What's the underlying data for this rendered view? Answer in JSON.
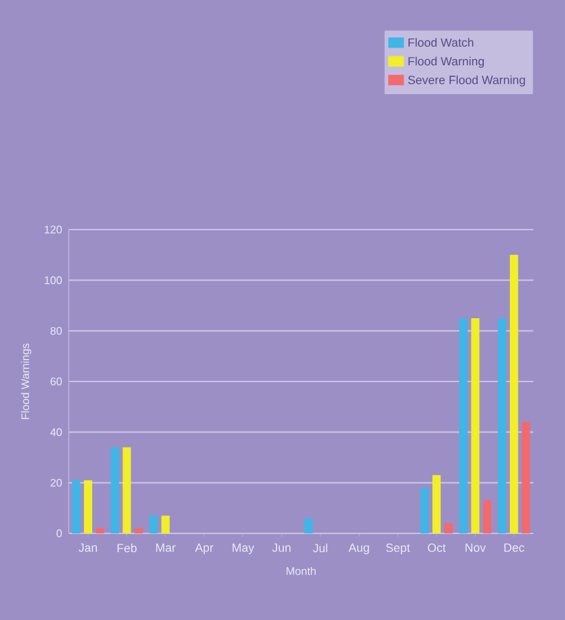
{
  "chart_data": {
    "type": "bar",
    "xlabel": "Month",
    "ylabel": "Flood Warnings",
    "categories": [
      "Jan",
      "Feb",
      "Mar",
      "Apr",
      "May",
      "Jun",
      "Jul",
      "Aug",
      "Sept",
      "Oct",
      "Nov",
      "Dec"
    ],
    "series": [
      {
        "name": "Flood Watch",
        "color": "#3fb6e6",
        "values": [
          21,
          34,
          7,
          0,
          0,
          0,
          6,
          0,
          0,
          18,
          85,
          85
        ]
      },
      {
        "name": "Flood Warning",
        "color": "#f2ee2a",
        "values": [
          21,
          34,
          7,
          0,
          0,
          0,
          0,
          0,
          0,
          23,
          85,
          110
        ]
      },
      {
        "name": "Severe Flood Warning",
        "color": "#f26a6e",
        "values": [
          2,
          2,
          0,
          0,
          0,
          0,
          0,
          0,
          0,
          4,
          13,
          44
        ]
      }
    ],
    "ylim": [
      0,
      120
    ],
    "yticks": [
      0,
      20,
      40,
      60,
      80,
      100,
      120
    ],
    "grid": "y",
    "legend": "top right"
  }
}
